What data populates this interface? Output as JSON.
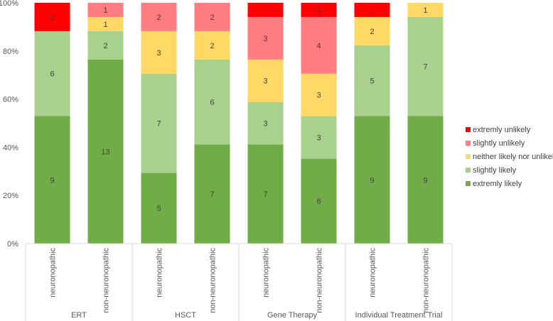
{
  "chart_data": {
    "type": "bar",
    "stacked": true,
    "normalized": true,
    "title": "",
    "xlabel": "",
    "ylabel": "",
    "ylim": [
      0,
      100
    ],
    "y_ticks": [
      "0%",
      "20%",
      "40%",
      "60%",
      "80%",
      "100%"
    ],
    "groups": [
      {
        "name": "ERT",
        "categories": [
          "neuronopathic",
          "non-neuronopathic"
        ]
      },
      {
        "name": "HSCT",
        "categories": [
          "neuronopathic",
          "non-neuronopathic"
        ]
      },
      {
        "name": "Gene Therapy",
        "categories": [
          "neuronopathic",
          "non-neuronopathic"
        ]
      },
      {
        "name": "Individual Treatment Trial",
        "categories": [
          "neuronopathic",
          "non-neuronopathic"
        ]
      }
    ],
    "series": [
      {
        "name": "extremly likely",
        "color": "#70AD47",
        "values": [
          9,
          13,
          5,
          7,
          7,
          6,
          9,
          9
        ]
      },
      {
        "name": "slightly likely",
        "color": "#A9D18E",
        "values": [
          6,
          2,
          7,
          6,
          3,
          3,
          5,
          7
        ]
      },
      {
        "name": "neither likely nor unlikely",
        "color": "#FFD966",
        "values": [
          0,
          1,
          3,
          2,
          3,
          3,
          2,
          1
        ]
      },
      {
        "name": "slightly unlikely",
        "color": "#FF7C80",
        "values": [
          0,
          1,
          2,
          2,
          3,
          4,
          0,
          0
        ]
      },
      {
        "name": "extremly unlikely",
        "color": "#FF0000",
        "values": [
          2,
          0,
          0,
          0,
          1,
          1,
          1,
          0
        ]
      }
    ],
    "legend_order": [
      "extremly unlikely",
      "slightly unlikely",
      "neither likely nor unlikely",
      "slightly likely",
      "extremly likely"
    ],
    "legend_position": "right",
    "grid": false
  }
}
